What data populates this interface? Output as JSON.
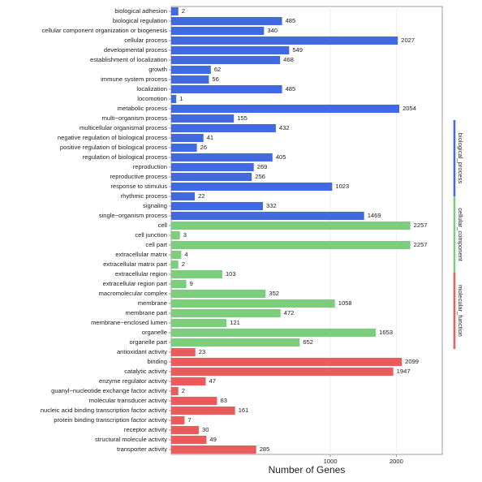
{
  "chart_data": {
    "type": "bar",
    "orientation": "horizontal",
    "x_scale": "sqrt",
    "x_label": "Number of Genes",
    "categories": [
      "biological adhesion",
      "biological regulation",
      "cellular component organization or biogenesis",
      "cellular process",
      "developmental process",
      "establishment of localization",
      "growth",
      "immune system process",
      "localization",
      "locomotion",
      "metabolic process",
      "multi−organism process",
      "multicellular organismal process",
      "negative regulation of biological process",
      "positive regulation of biological process",
      "regulation of biological process",
      "reproduction",
      "reproductive process",
      "response to stimulus",
      "rhythmic process",
      "signaling",
      "single−organism process",
      "cell",
      "cell junction",
      "cell part",
      "extracellular matrix",
      "extracellular matrix part",
      "extracellular region",
      "extracellular region part",
      "macromolecular complex",
      "membrane",
      "membrane part",
      "membrane−enclosed lumen",
      "organelle",
      "organelle part",
      "antioxidant activity",
      "binding",
      "catalytic activity",
      "enzyme regulator activity",
      "guanyl−nucleotide exchange factor activity",
      "molecular transducer activity",
      "nucleic acid binding transcription factor activity",
      "protein binding transcription factor activity",
      "receptor activity",
      "structural molecule activity",
      "transporter activity"
    ],
    "series": [
      {
        "name": "biological_process",
        "color": "#4169e1",
        "values": [
          2,
          485,
          340,
          2027,
          549,
          468,
          62,
          56,
          485,
          1,
          2054,
          155,
          432,
          41,
          26,
          405,
          269,
          256,
          1023,
          22,
          332,
          1469,
          null,
          null,
          null,
          null,
          null,
          null,
          null,
          null,
          null,
          null,
          null,
          null,
          null,
          null,
          null,
          null,
          null,
          null,
          null,
          null,
          null,
          null,
          null,
          null
        ]
      },
      {
        "name": "cellular_component",
        "color": "#7ccd7c",
        "values": [
          null,
          null,
          null,
          null,
          null,
          null,
          null,
          null,
          null,
          null,
          null,
          null,
          null,
          null,
          null,
          null,
          null,
          null,
          null,
          null,
          null,
          null,
          2257,
          3,
          2257,
          4,
          2,
          103,
          9,
          352,
          1058,
          472,
          121,
          1653,
          652,
          null,
          null,
          null,
          null,
          null,
          null,
          null,
          null,
          null,
          null,
          null
        ]
      },
      {
        "name": "molecular_function",
        "color": "#ea5b5b",
        "values": [
          null,
          null,
          null,
          null,
          null,
          null,
          null,
          null,
          null,
          null,
          null,
          null,
          null,
          null,
          null,
          null,
          null,
          null,
          null,
          null,
          null,
          null,
          null,
          null,
          null,
          null,
          null,
          null,
          null,
          null,
          null,
          null,
          null,
          null,
          null,
          23,
          2099,
          1947,
          47,
          2,
          83,
          161,
          7,
          30,
          49,
          285
        ]
      }
    ],
    "xlim": [
      0,
      2900
    ],
    "xticks": [
      1000,
      2000
    ],
    "grid": true
  }
}
